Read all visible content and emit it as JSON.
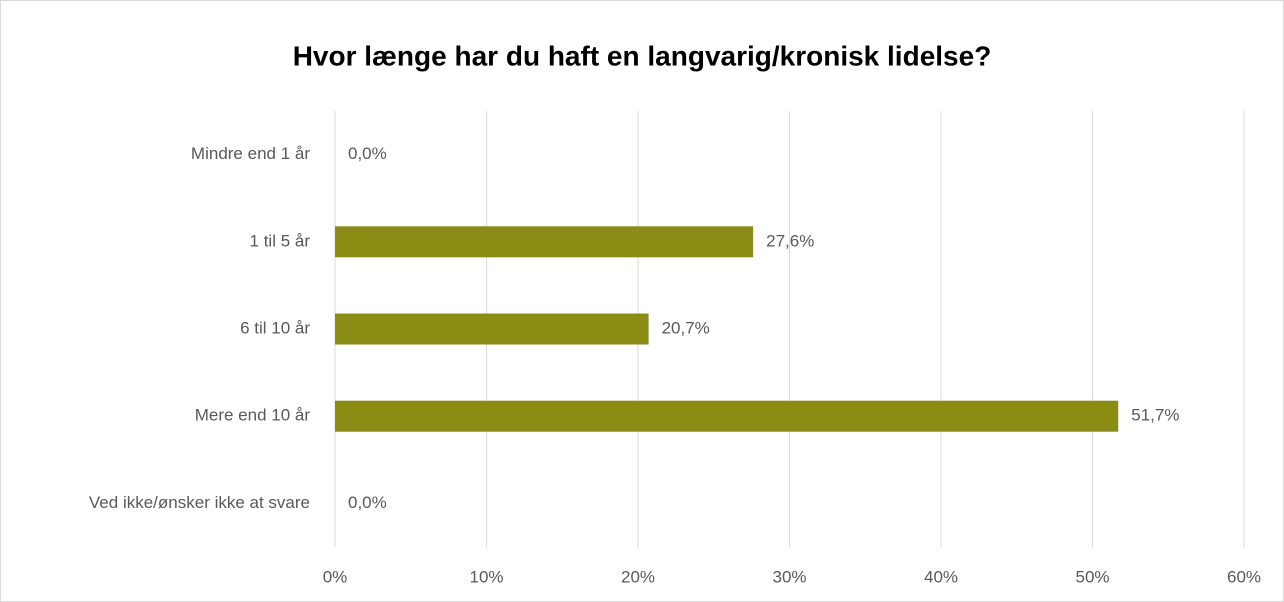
{
  "chart_data": {
    "type": "bar",
    "orientation": "horizontal",
    "title": "Hvor længe har du haft en langvarig/kronisk lidelse?",
    "categories": [
      "Mindre end 1 år",
      "1 til 5 år",
      "6 til 10 år",
      "Mere end 10 år",
      "Ved ikke/ønsker ikke at svare"
    ],
    "values": [
      0,
      27.6,
      20.7,
      51.7,
      0
    ],
    "value_labels": [
      "0,0%",
      "27,6%",
      "20,7%",
      "51,7%",
      "0,0%"
    ],
    "color": "#8a8c14",
    "xlim": [
      0,
      60
    ],
    "xticks": [
      {
        "value": 0,
        "label": "0%"
      },
      {
        "value": 10,
        "label": "10%"
      },
      {
        "value": 20,
        "label": "20%"
      },
      {
        "value": 30,
        "label": "30%"
      },
      {
        "value": 40,
        "label": "40%"
      },
      {
        "value": 50,
        "label": "50%"
      },
      {
        "value": 60,
        "label": "60%"
      }
    ],
    "grid": true
  }
}
